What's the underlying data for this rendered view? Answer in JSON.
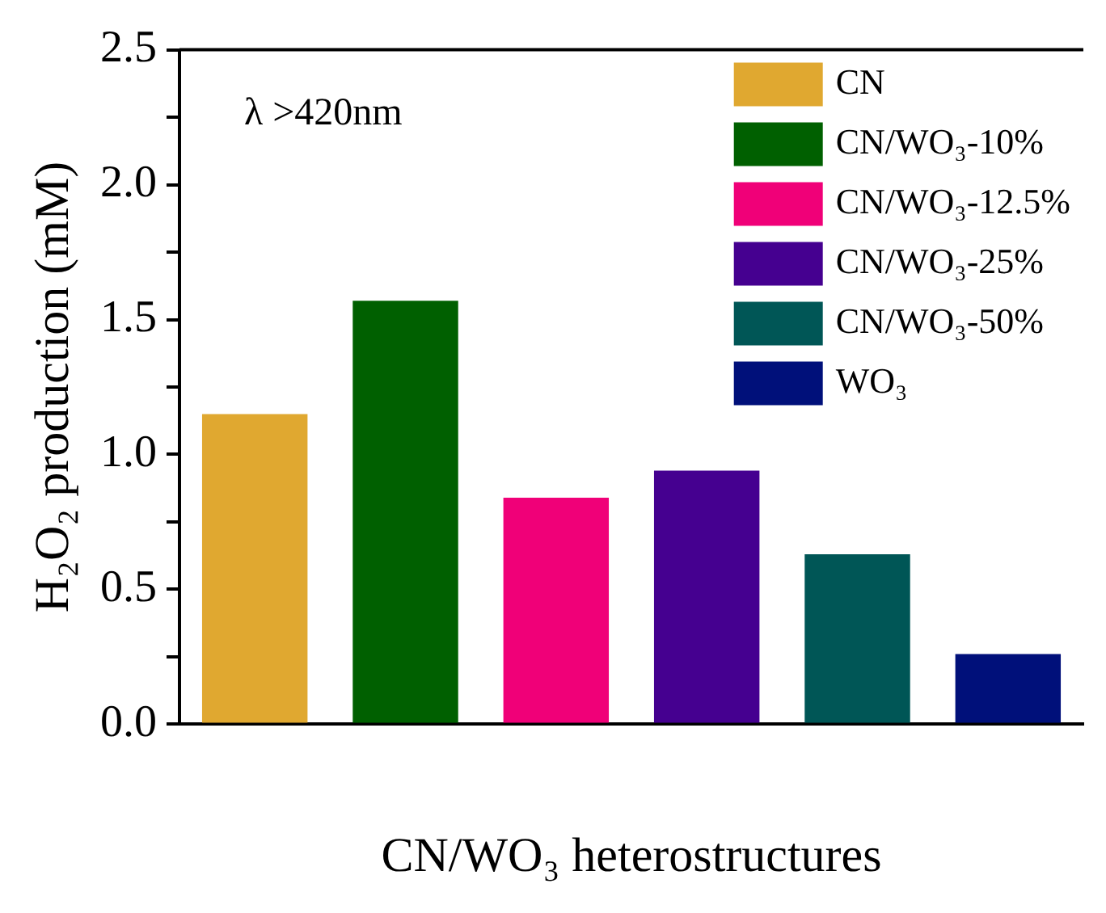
{
  "chart_data": {
    "type": "bar",
    "xlabel": "CN/WO₃ heterostructures",
    "ylabel": "H₂O₂ production (mM)",
    "annotations": [
      "λ >420nm"
    ],
    "categories": [
      null,
      null,
      null,
      null,
      null,
      null
    ],
    "series": [
      {
        "name": "CN",
        "color": "#e0a830",
        "values": [
          1.15,
          null,
          null,
          null,
          null,
          null
        ]
      },
      {
        "name": "CN/WO₃-10%",
        "color": "#006000",
        "values": [
          null,
          1.57,
          null,
          null,
          null,
          null
        ]
      },
      {
        "name": "CN/WO₃-12.5%",
        "color": "#f00078",
        "values": [
          null,
          null,
          0.84,
          null,
          null,
          null
        ]
      },
      {
        "name": "CN/WO₃-25%",
        "color": "#450090",
        "values": [
          null,
          null,
          null,
          0.94,
          null,
          null
        ]
      },
      {
        "name": "CN/WO₃-50%",
        "color": "#005656",
        "values": [
          null,
          null,
          null,
          null,
          0.63,
          null
        ]
      },
      {
        "name": "WO₃",
        "color": "#00107a",
        "values": [
          null,
          null,
          null,
          null,
          null,
          0.26
        ]
      }
    ],
    "ylim": [
      0,
      2.5
    ],
    "yticks": [
      {
        "value": 0,
        "label": "0.0"
      },
      {
        "value": 0.25,
        "label": null
      },
      {
        "value": 0.5,
        "label": "0.5"
      },
      {
        "value": 0.75,
        "label": null
      },
      {
        "value": 1,
        "label": "1.0"
      },
      {
        "value": 1.25,
        "label": null
      },
      {
        "value": 1.5,
        "label": "1.5"
      },
      {
        "value": 1.75,
        "label": null
      },
      {
        "value": 2,
        "label": "2.0"
      },
      {
        "value": 2.25,
        "label": null
      },
      {
        "value": 2.5,
        "label": "2.5"
      }
    ],
    "grid": false,
    "legend": "top right"
  }
}
